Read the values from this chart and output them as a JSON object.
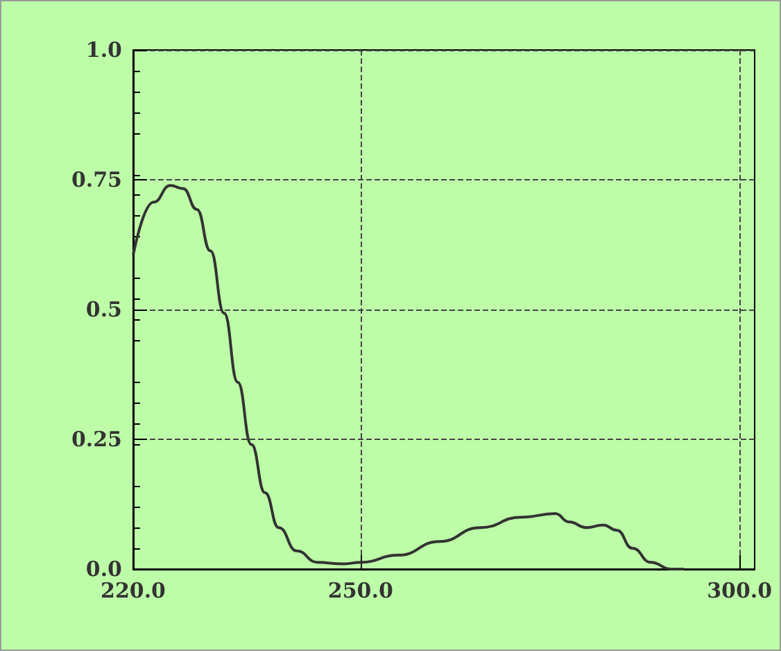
{
  "chart_data": {
    "type": "line",
    "x": [
      220,
      222.7,
      224.9,
      226.6,
      228.4,
      230.2,
      232,
      233.8,
      235.6,
      237.4,
      239.2,
      241.6,
      244.3,
      247.8,
      250,
      255,
      260.4,
      265.8,
      271.2,
      275.7,
      277.5,
      279.8,
      282,
      283.8,
      285.9,
      288.3,
      291,
      292.7
    ],
    "series": [
      {
        "color": "#333333",
        "values": [
          0.605,
          0.707,
          0.739,
          0.733,
          0.693,
          0.613,
          0.493,
          0.36,
          0.24,
          0.147,
          0.08,
          0.035,
          0.013,
          0.01,
          0.013,
          0.027,
          0.053,
          0.08,
          0.1,
          0.107,
          0.091,
          0.08,
          0.085,
          0.075,
          0.04,
          0.013,
          0,
          0
        ]
      }
    ],
    "xlim": [
      220,
      302
    ],
    "xticks": [
      {
        "value": 220,
        "label": "220.0"
      },
      {
        "value": 250,
        "label": "250.0"
      },
      {
        "value": 300,
        "label": "300.0"
      }
    ],
    "ylim": [
      0,
      1
    ],
    "yticks": [
      {
        "value": 0,
        "label": "0.0"
      },
      0.25,
      0.5,
      0.75,
      {
        "value": 1,
        "label": "1.0"
      }
    ],
    "grid": true,
    "marker": "none",
    "line_style": "solid"
  }
}
